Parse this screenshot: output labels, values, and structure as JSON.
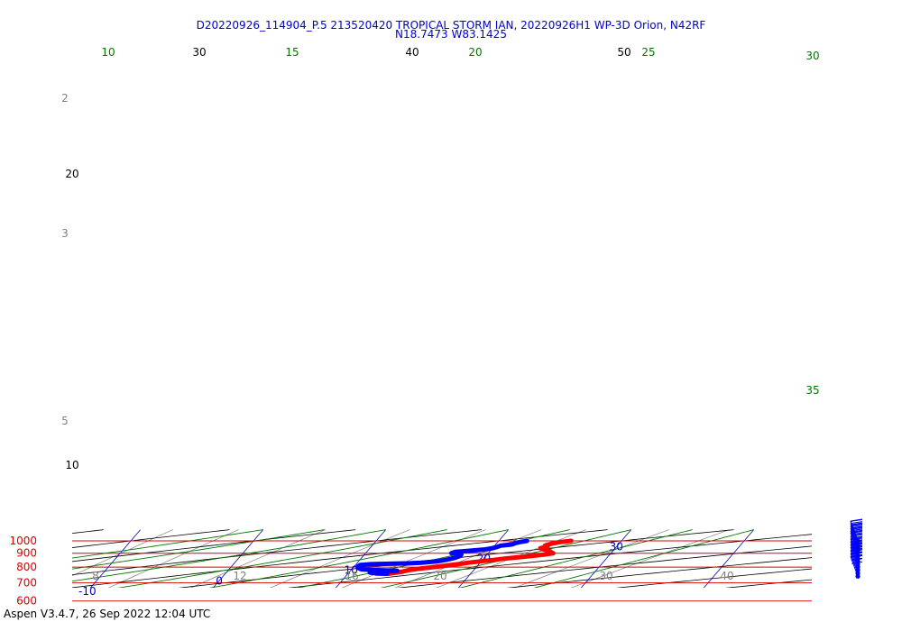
{
  "header": {
    "title_line1": "D20220926_114904_P.5 213520420 TROPICAL STORM IAN, 20220926H1 WP-3D Orion, N42RF",
    "title_line2": "N18.7473 W83.1425"
  },
  "footer": {
    "text": "Aspen V3.4.7, 26 Sep 2022  12:04 UTC"
  },
  "colors": {
    "isobar": "#dd0000",
    "dry_adiabat": "#000000",
    "moist_adiabat": "#007700",
    "isotherm": "#0000cc",
    "mixing_ratio": "#808080",
    "temperature": "#ff0000",
    "dewpoint": "#0000ff"
  },
  "chart_data": {
    "type": "skew-t",
    "pressure_range": [
      1050,
      600
    ],
    "pressure_labels": [
      "600",
      "700",
      "800",
      "900",
      "1000"
    ],
    "isotherm_labels": [
      "-10",
      "0",
      "10",
      "20",
      "30"
    ],
    "dry_adiabat_labels": [
      "10",
      "20",
      "30",
      "40",
      "50"
    ],
    "moist_adiabat_labels": [
      "10",
      "15",
      "20",
      "25",
      "30",
      "35"
    ],
    "mixing_ratio_labels": [
      "2",
      "3",
      "5",
      "8",
      "12",
      "16",
      "20",
      "30",
      "40"
    ],
    "temperature_profile": [
      {
        "p": 1000,
        "t": 25.9
      },
      {
        "p": 990,
        "t": 25.1
      },
      {
        "p": 980,
        "t": 24.6
      },
      {
        "p": 970,
        "t": 24.3
      },
      {
        "p": 960,
        "t": 24.1
      },
      {
        "p": 950,
        "t": 24.4
      },
      {
        "p": 940,
        "t": 23.9
      },
      {
        "p": 930,
        "t": 24.2
      },
      {
        "p": 920,
        "t": 24.8
      },
      {
        "p": 910,
        "t": 25.0
      },
      {
        "p": 900,
        "t": 25.3
      },
      {
        "p": 890,
        "t": 24.7
      },
      {
        "p": 880,
        "t": 23.8
      },
      {
        "p": 870,
        "t": 22.7
      },
      {
        "p": 860,
        "t": 21.7
      },
      {
        "p": 850,
        "t": 20.9
      },
      {
        "p": 840,
        "t": 19.9
      },
      {
        "p": 830,
        "t": 19.0
      },
      {
        "p": 820,
        "t": 18.3
      },
      {
        "p": 810,
        "t": 17.4
      },
      {
        "p": 800,
        "t": 16.5
      },
      {
        "p": 790,
        "t": 15.5
      },
      {
        "p": 780,
        "t": 14.7
      },
      {
        "p": 770,
        "t": 14.3
      },
      {
        "p": 760,
        "t": 13.6
      },
      {
        "p": 756,
        "t": 13.3
      }
    ],
    "dewpoint_profile": [
      {
        "p": 1000,
        "td": 22.3
      },
      {
        "p": 990,
        "td": 21.8
      },
      {
        "p": 980,
        "td": 21.5
      },
      {
        "p": 970,
        "td": 21.3
      },
      {
        "p": 960,
        "td": 20.5
      },
      {
        "p": 950,
        "td": 20.3
      },
      {
        "p": 940,
        "td": 20.0
      },
      {
        "p": 930,
        "td": 19.5
      },
      {
        "p": 920,
        "td": 18.4
      },
      {
        "p": 910,
        "td": 17.2
      },
      {
        "p": 900,
        "td": 17.0
      },
      {
        "p": 890,
        "td": 17.9
      },
      {
        "p": 880,
        "td": 17.9
      },
      {
        "p": 870,
        "td": 17.7
      },
      {
        "p": 860,
        "td": 17.4
      },
      {
        "p": 850,
        "td": 17.0
      },
      {
        "p": 840,
        "td": 16.4
      },
      {
        "p": 830,
        "td": 15.2
      },
      {
        "p": 826,
        "td": 14.3
      },
      {
        "p": 820,
        "td": 11.2
      },
      {
        "p": 815,
        "td": 10.4
      },
      {
        "p": 805,
        "td": 10.3
      },
      {
        "p": 795,
        "td": 10.4
      },
      {
        "p": 785,
        "td": 10.8
      },
      {
        "p": 780,
        "td": 11.9
      },
      {
        "p": 776,
        "td": 13.8
      },
      {
        "p": 770,
        "td": 12.2
      },
      {
        "p": 764,
        "td": 11.7
      },
      {
        "p": 758,
        "td": 12.3
      },
      {
        "p": 756,
        "td": 13.2
      }
    ],
    "wind_barb_levels": [
      1000,
      997,
      980,
      960,
      940,
      920,
      905,
      880,
      860,
      840,
      820,
      800,
      780,
      760,
      740
    ]
  }
}
